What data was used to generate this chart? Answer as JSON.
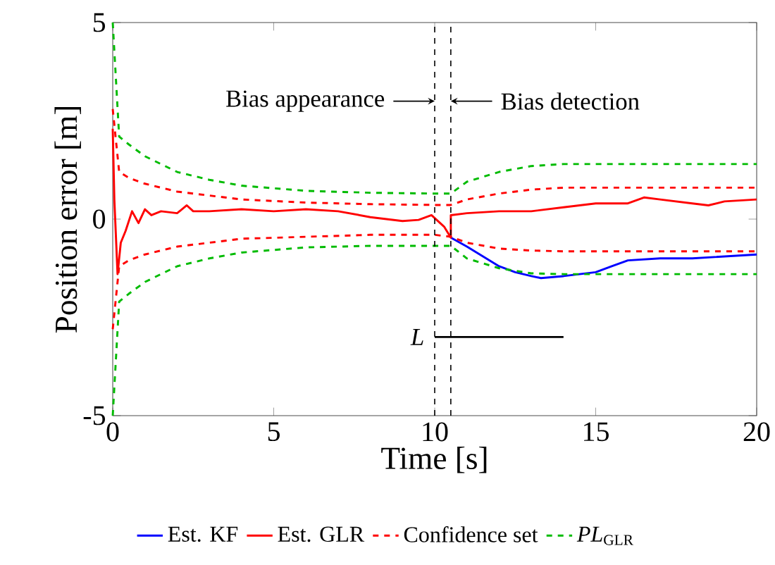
{
  "chart_data": {
    "type": "line",
    "xlabel": "Time [s]",
    "ylabel": "Position error [m]",
    "xlim": [
      0,
      20
    ],
    "ylim": [
      -5,
      5
    ],
    "xticks": [
      0,
      5,
      10,
      15,
      20
    ],
    "yticks": [
      -5,
      0,
      5
    ],
    "legend": "bottom",
    "series": [
      {
        "name": "Est. KF",
        "color": "#0000ff",
        "line_style": "solid",
        "x": [
          10.5,
          11,
          11.5,
          12,
          12.5,
          13,
          13.3,
          14,
          15,
          15.5,
          16,
          17,
          18,
          19,
          20
        ],
        "values": [
          -0.47,
          -0.7,
          -0.95,
          -1.2,
          -1.35,
          -1.45,
          -1.5,
          -1.45,
          -1.35,
          -1.2,
          -1.05,
          -1.0,
          -1.0,
          -0.95,
          -0.9
        ]
      },
      {
        "name": "Est. GLR",
        "color": "#ff0000",
        "line_style": "solid",
        "x": [
          0,
          0.05,
          0.15,
          0.25,
          0.4,
          0.6,
          0.8,
          1,
          1.2,
          1.5,
          2,
          2.3,
          2.5,
          3,
          4,
          5,
          6,
          7,
          8,
          8.5,
          9,
          9.5,
          9.9,
          10.3,
          10.5,
          10.5,
          11,
          12,
          13,
          14,
          15,
          16,
          16.5,
          17,
          18,
          18.5,
          19,
          20
        ],
        "values": [
          2.3,
          0.5,
          -1.4,
          -0.6,
          -0.3,
          0.2,
          -0.1,
          0.25,
          0.1,
          0.2,
          0.15,
          0.35,
          0.2,
          0.2,
          0.25,
          0.2,
          0.25,
          0.2,
          0.05,
          0.0,
          -0.05,
          -0.02,
          0.1,
          -0.2,
          -0.47,
          0.1,
          0.15,
          0.2,
          0.2,
          0.3,
          0.4,
          0.4,
          0.55,
          0.5,
          0.4,
          0.35,
          0.45,
          0.5
        ]
      },
      {
        "name": "Confidence set",
        "color": "#ff0000",
        "line_style": "dashed",
        "x": [
          0,
          0.2,
          0.5,
          1,
          2,
          3,
          4,
          6,
          8,
          10,
          10.5,
          11,
          12,
          13,
          14,
          20
        ],
        "values": [
          2.8,
          1.2,
          1.05,
          0.9,
          0.7,
          0.6,
          0.5,
          0.42,
          0.38,
          0.36,
          0.36,
          0.5,
          0.65,
          0.75,
          0.8,
          0.8
        ]
      },
      {
        "color": "#ff0000",
        "line_style": "dashed",
        "x": [
          0,
          0.2,
          0.5,
          1,
          2,
          3,
          4,
          6,
          8,
          10,
          10.5,
          11,
          12,
          13,
          14,
          20
        ],
        "values": [
          -2.8,
          -1.2,
          -1.05,
          -0.9,
          -0.7,
          -0.6,
          -0.5,
          -0.45,
          -0.4,
          -0.4,
          -0.45,
          -0.6,
          -0.75,
          -0.8,
          -0.82,
          -0.82
        ]
      },
      {
        "name": "*PL*$_{GLR}$",
        "color": "#00bb00",
        "line_style": "dashed",
        "x": [
          0,
          0.2,
          0.5,
          1,
          2,
          3,
          4,
          6,
          8,
          10,
          10.5,
          11,
          12,
          13,
          14,
          16,
          20
        ],
        "values": [
          5,
          2.1,
          1.9,
          1.6,
          1.2,
          1.0,
          0.85,
          0.72,
          0.67,
          0.65,
          0.65,
          0.95,
          1.2,
          1.35,
          1.4,
          1.4,
          1.4
        ]
      },
      {
        "color": "#00bb00",
        "line_style": "dashed",
        "x": [
          0,
          0.2,
          0.5,
          1,
          2,
          3,
          4,
          6,
          8,
          10,
          10.5,
          11,
          12,
          13,
          14,
          16,
          20
        ],
        "values": [
          -5,
          -2.1,
          -1.9,
          -1.6,
          -1.2,
          -1.0,
          -0.85,
          -0.72,
          -0.68,
          -0.68,
          -0.68,
          -1.0,
          -1.25,
          -1.38,
          -1.4,
          -1.4,
          -1.4
        ]
      },
      {
        "color": "#000000",
        "line_style": "solid",
        "x": [
          10,
          14
        ],
        "values": [
          -3,
          -3
        ]
      }
    ],
    "ref_lines": [
      {
        "axis": "x",
        "value": 10,
        "color": "#000000",
        "line_style": "dashed"
      },
      {
        "axis": "x",
        "value": 10.5,
        "color": "#000000",
        "line_style": "dashed"
      }
    ],
    "annotations": [
      "Bias appearance",
      "Bias detection",
      "L"
    ]
  }
}
